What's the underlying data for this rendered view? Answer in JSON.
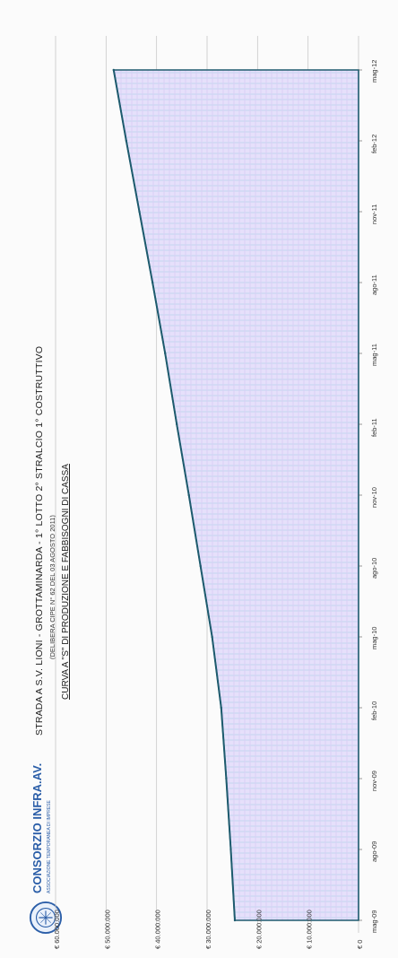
{
  "header": {
    "title": "STRADA A S.V. LIONI - GROTTAMINARDA - 1° LOTTO 2° STRALCIO 1° COSTRUTTIVO",
    "subtitle": "(DELIBERA CIPE N° 62 DEL 03 AGOSTO 2011)",
    "chart_title": "CURVA A \"S\" DI PRODUZIONE E FABBISOGNI DI CASSA"
  },
  "logo": {
    "name": "CONSORZIO INFRA.AV.",
    "tagline": "ASSOCIAZIONE TEMPORANEA DI IMPRESE"
  },
  "chart_data": {
    "type": "area",
    "title": "CURVA A \"S\" DI PRODUZIONE E FABBISOGNI DI CASSA",
    "orientation": "rotated-90",
    "x": [
      "mag-09",
      "ago-09",
      "nov-09",
      "feb-10",
      "mag-10",
      "ago-10",
      "nov-10",
      "feb-11",
      "mag-11",
      "ago-11",
      "nov-11",
      "feb-12",
      "mag-12"
    ],
    "series": [
      {
        "values": [
          24500000,
          25300000,
          26200000,
          27200000,
          29000000,
          31300000,
          33600000,
          36000000,
          38300000,
          40800000,
          43400000,
          46000000,
          48500000
        ]
      }
    ],
    "y_ticks": [
      "€ 0",
      "€ 10.000.000",
      "€ 20.000.000",
      "€ 30.000.000",
      "€ 40.000.000",
      "€ 50.000.000",
      "€ 60.000.000"
    ],
    "ylim": [
      0,
      60000000
    ],
    "grid": true,
    "colors": {
      "fill": "#e4defa",
      "fill_grid": "#bcd2ee",
      "line": "#1e5b6e",
      "grid_line": "#c8c8c8"
    }
  }
}
